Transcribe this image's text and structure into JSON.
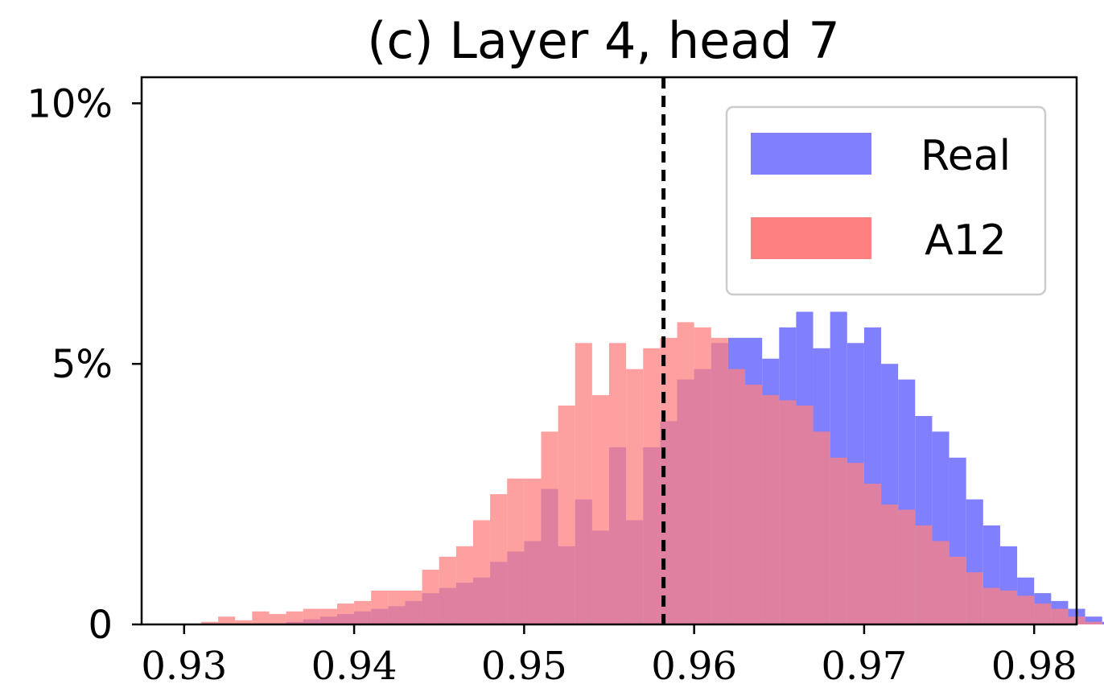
{
  "chart_data": {
    "type": "histogram",
    "title": "(c) Layer 4, head 7",
    "xlabel": "",
    "ylabel": "",
    "xlim": [
      0.9275,
      0.9825
    ],
    "ylim": [
      0,
      10.5
    ],
    "x_ticks": [
      0.93,
      0.94,
      0.95,
      0.96,
      0.97,
      0.98
    ],
    "x_tick_labels": [
      "0.93",
      "0.94",
      "0.95",
      "0.96",
      "0.97",
      "0.98"
    ],
    "y_ticks": [
      0,
      5,
      10
    ],
    "y_tick_labels": [
      "0",
      "5%",
      "10%"
    ],
    "bin_start": 0.93,
    "bin_width": 0.001,
    "legend_position": "top-right",
    "threshold_line": 0.9582,
    "series": [
      {
        "name": "Real",
        "color": "#8080ff",
        "values": [
          0,
          0,
          0,
          0,
          0,
          0,
          0.05,
          0.1,
          0.15,
          0.2,
          0.25,
          0.3,
          0.35,
          0.45,
          0.6,
          0.7,
          0.8,
          0.9,
          1.2,
          1.4,
          1.6,
          2.6,
          1.5,
          2.4,
          1.8,
          3.4,
          2.0,
          3.4,
          3.9,
          4.7,
          4.9,
          5.4,
          5.5,
          5.5,
          5.1,
          5.7,
          6.0,
          5.3,
          6.0,
          5.4,
          5.7,
          5.0,
          4.7,
          4.0,
          3.7,
          3.2,
          2.4,
          1.9,
          1.5,
          0.9,
          0.6,
          0.45,
          0.3,
          0.15,
          0.05,
          0.05,
          0,
          0,
          0,
          0
        ]
      },
      {
        "name": "A12",
        "color": "#ff8080",
        "values": [
          0,
          0.05,
          0.15,
          0.08,
          0.25,
          0.2,
          0.25,
          0.3,
          0.3,
          0.4,
          0.45,
          0.65,
          0.65,
          0.65,
          1.05,
          1.3,
          1.5,
          2.0,
          2.5,
          2.8,
          2.8,
          3.7,
          4.2,
          5.4,
          4.4,
          5.4,
          4.9,
          5.3,
          5.5,
          5.8,
          5.7,
          5.5,
          4.9,
          4.6,
          4.4,
          4.3,
          4.2,
          3.7,
          3.2,
          3.1,
          2.7,
          2.3,
          2.2,
          1.9,
          1.6,
          1.3,
          1.0,
          0.7,
          0.65,
          0.55,
          0.4,
          0.3,
          0.15,
          0.05,
          0,
          0,
          0,
          0,
          0,
          0
        ]
      }
    ]
  }
}
